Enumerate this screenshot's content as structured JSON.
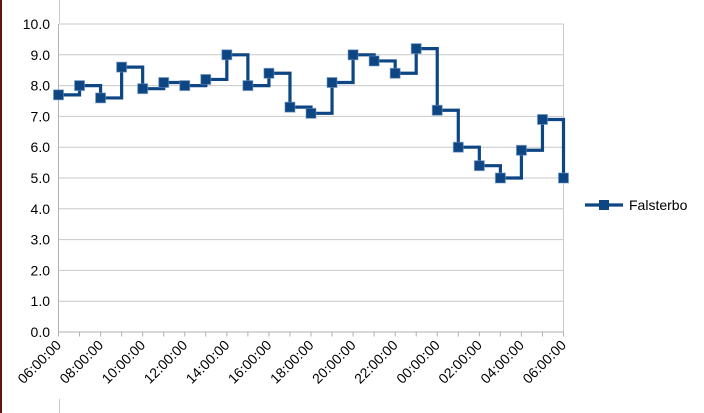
{
  "chart_data": {
    "type": "line",
    "stepped": true,
    "title": "",
    "categories": [
      "06:00:00",
      "07:00:00",
      "08:00:00",
      "09:00:00",
      "10:00:00",
      "11:00:00",
      "12:00:00",
      "13:00:00",
      "14:00:00",
      "15:00:00",
      "16:00:00",
      "17:00:00",
      "18:00:00",
      "19:00:00",
      "20:00:00",
      "21:00:00",
      "22:00:00",
      "23:00:00",
      "00:00:00",
      "01:00:00",
      "02:00:00",
      "03:00:00",
      "04:00:00",
      "05:00:00",
      "06:00:00"
    ],
    "series": [
      {
        "name": "Falsterbo",
        "color": "#0d4682",
        "marker": "square",
        "values": [
          7.7,
          8.0,
          7.6,
          8.6,
          7.9,
          8.1,
          8.0,
          8.2,
          9.0,
          8.0,
          8.4,
          7.3,
          7.1,
          8.1,
          9.0,
          8.8,
          8.4,
          9.2,
          7.2,
          6.0,
          5.4,
          5.0,
          5.9,
          6.9,
          5.0
        ]
      }
    ],
    "x_label_every": 2,
    "x_tick_labels_shown": [
      "06:00:00",
      "08:00:00",
      "10:00:00",
      "12:00:00",
      "14:00:00",
      "16:00:00",
      "18:00:00",
      "20:00:00",
      "22:00:00",
      "00:00:00",
      "02:00:00",
      "04:00:00",
      "06:00:00"
    ],
    "ylim": [
      0,
      10
    ],
    "y_tick_step": 1.0,
    "y_tick_labels": [
      "0.0",
      "1.0",
      "2.0",
      "3.0",
      "4.0",
      "5.0",
      "6.0",
      "7.0",
      "8.0",
      "9.0",
      "10.0"
    ],
    "grid": "horizontal-only",
    "legend": {
      "position": "right",
      "label": "Falsterbo"
    },
    "colors": {
      "gridline": "#c9c9c9",
      "axis": "#b0b0b0",
      "text": "#000000",
      "background": "#ffffff",
      "marker_halo": "#6f96c4",
      "screen_edge_strip": "#5e1712"
    }
  }
}
